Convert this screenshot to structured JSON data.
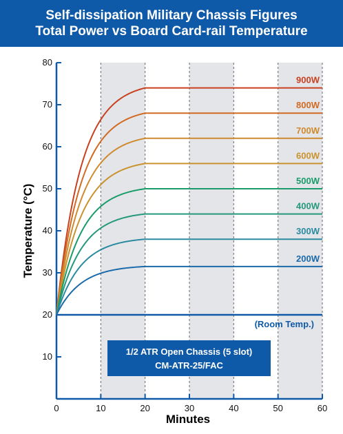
{
  "header": {
    "title_line1": "Self-dissipation Military Chassis Figures",
    "title_line2": "Total Power vs Board Card-rail Temperature",
    "bg_color": "#0f5aa8"
  },
  "annotation_box": {
    "line1": "1/2 ATR Open Chassis (5 slot)",
    "line2": "CM-ATR-25/FAC",
    "bg_color": "#0f5aa8"
  },
  "chart_data": {
    "type": "line",
    "xlabel": "Minutes",
    "ylabel": "Temperature (°C)",
    "xlim": [
      0,
      60
    ],
    "ylim": [
      0,
      80
    ],
    "x_ticks": [
      0,
      10,
      20,
      30,
      40,
      50,
      60
    ],
    "y_ticks": [
      10,
      20,
      30,
      40,
      50,
      60,
      70,
      80
    ],
    "shaded_x_bands": [
      [
        10,
        20
      ],
      [
        30,
        40
      ],
      [
        50,
        60
      ]
    ],
    "start_temp": 20,
    "plateau_start_minute": 20,
    "series": [
      {
        "name": "900W",
        "plateau": 74,
        "color": "#c8401e"
      },
      {
        "name": "800W",
        "plateau": 68,
        "color": "#d26a22"
      },
      {
        "name": "700W",
        "plateau": 62,
        "color": "#cf8a2e"
      },
      {
        "name": "600W",
        "plateau": 56,
        "color": "#c9922c"
      },
      {
        "name": "500W",
        "plateau": 50,
        "color": "#1a9c6a"
      },
      {
        "name": "400W",
        "plateau": 44,
        "color": "#23987a"
      },
      {
        "name": "300W",
        "plateau": 38,
        "color": "#2a8aa0"
      },
      {
        "name": "200W",
        "plateau": 31.5,
        "color": "#1a6aaa"
      }
    ],
    "reference_line": {
      "name": "(Room Temp.)",
      "value": 20,
      "color": "#0f5aa8"
    }
  }
}
